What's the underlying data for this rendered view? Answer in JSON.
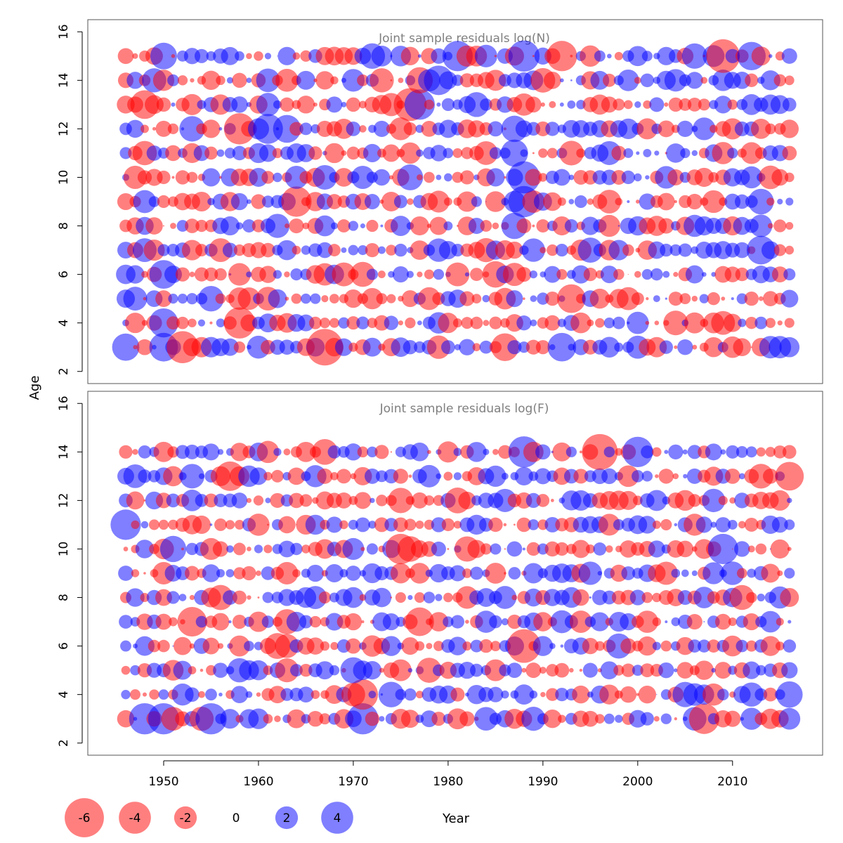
{
  "colors": {
    "negative": "#ff0000",
    "positive": "#0000ff",
    "title_gray": "#7f7f7f",
    "frame": "#555555"
  },
  "bubble_alpha": 0.5,
  "y_axis_label": "Age",
  "x_axis_label": "Year",
  "x_ticks": [
    1950,
    1960,
    1970,
    1980,
    1990,
    2000,
    2010
  ],
  "y_ticks": [
    2,
    4,
    6,
    8,
    10,
    12,
    14,
    16
  ],
  "legend": {
    "items": [
      {
        "label": "-6",
        "value": -6
      },
      {
        "label": "-4",
        "value": -4
      },
      {
        "label": "-2",
        "value": -2
      },
      {
        "label": "0",
        "value": 0
      },
      {
        "label": "2",
        "value": 2
      },
      {
        "label": "4",
        "value": 4
      }
    ]
  },
  "chart_data": [
    {
      "type": "scatter",
      "subtype": "bubble",
      "title": "Joint sample residuals log(N)",
      "xlabel": "Year",
      "ylabel": "Age",
      "xlim": [
        1942,
        2019.5
      ],
      "ylim": [
        1.5,
        16.5
      ],
      "years": [
        1946,
        2016
      ],
      "ages": [
        3,
        15
      ],
      "seed": 7,
      "notes_on_values": "Residuals per year×age; sign = colour (red negative, blue positive), |value| = bubble area"
    },
    {
      "type": "scatter",
      "subtype": "bubble",
      "title": "Joint sample residuals log(F)",
      "xlabel": "Year",
      "ylabel": "Age",
      "xlim": [
        1942,
        2019.5
      ],
      "ylim": [
        1.5,
        16.5
      ],
      "years": [
        1946,
        2016
      ],
      "ages": [
        3,
        14
      ],
      "seed": 19,
      "notes_on_values": "Residuals per year×age; sign = colour (red negative, blue positive), |value| = bubble area"
    }
  ],
  "notable_values": {
    "N": [
      {
        "year": 1967,
        "age": 3,
        "value": -5.2
      },
      {
        "year": 1952,
        "age": 3,
        "value": -4.0
      },
      {
        "year": 1950,
        "age": 3,
        "value": 3.2
      },
      {
        "year": 1950,
        "age": 4,
        "value": 3.3
      },
      {
        "year": 1958,
        "age": 4,
        "value": -3.8
      },
      {
        "year": 1964,
        "age": 9,
        "value": -3.6
      },
      {
        "year": 1988,
        "age": 9,
        "value": 3.8
      },
      {
        "year": 1988,
        "age": 10,
        "value": 4.0
      },
      {
        "year": 1958,
        "age": 12,
        "value": -3.8
      },
      {
        "year": 1961,
        "age": 12,
        "value": 3.5
      },
      {
        "year": 1976,
        "age": 13,
        "value": -4.2
      },
      {
        "year": 1977,
        "age": 13,
        "value": 3.6
      },
      {
        "year": 1981,
        "age": 15,
        "value": 3.6
      },
      {
        "year": 1988,
        "age": 15,
        "value": 3.8
      },
      {
        "year": 1992,
        "age": 15,
        "value": -3.6
      },
      {
        "year": 2009,
        "age": 15,
        "value": -4.4
      },
      {
        "year": 1979,
        "age": 14,
        "value": 3.4
      },
      {
        "year": 1986,
        "age": 3,
        "value": -3.0
      }
    ],
    "F": [
      {
        "year": 1996,
        "age": 14,
        "value": -5.0
      },
      {
        "year": 1988,
        "age": 14,
        "value": 3.8
      },
      {
        "year": 2000,
        "age": 14,
        "value": 3.6
      },
      {
        "year": 1988,
        "age": 6,
        "value": -4.4
      },
      {
        "year": 1953,
        "age": 7,
        "value": -3.4
      },
      {
        "year": 1971,
        "age": 4,
        "value": -3.6
      },
      {
        "year": 1971,
        "age": 3,
        "value": 3.8
      },
      {
        "year": 1955,
        "age": 3,
        "value": 3.8
      },
      {
        "year": 1950,
        "age": 3,
        "value": 3.8
      },
      {
        "year": 1948,
        "age": 3,
        "value": 3.8
      },
      {
        "year": 1946,
        "age": 11,
        "value": 3.6
      },
      {
        "year": 1975,
        "age": 10,
        "value": -3.6
      },
      {
        "year": 2007,
        "age": 3,
        "value": -3.6
      },
      {
        "year": 2009,
        "age": 10,
        "value": 3.6
      },
      {
        "year": 1957,
        "age": 13,
        "value": -3.4
      },
      {
        "year": 2016,
        "age": 13,
        "value": -3.2
      }
    ]
  }
}
